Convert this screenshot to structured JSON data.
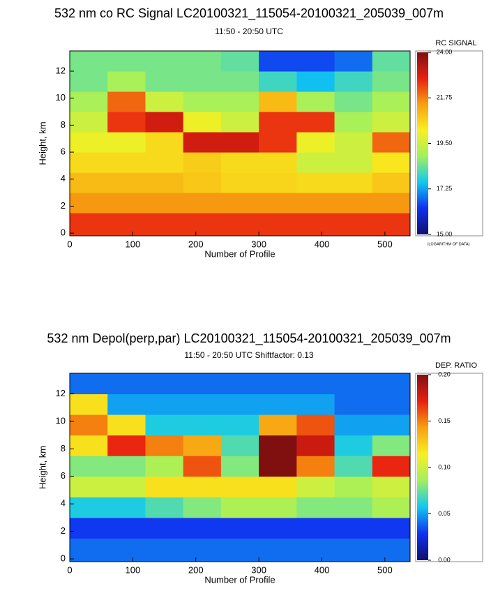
{
  "chart_data": [
    {
      "type": "heatmap",
      "title": "532 nm co RC Signal LC20100321_115054-20100321_205039_007m",
      "subtitle": "11:50 - 20:50 UTC",
      "x_label": "Number of Profile",
      "y_label": "Height, km",
      "xlim": [
        0,
        540
      ],
      "xticks": [
        0,
        100,
        200,
        300,
        400,
        500
      ],
      "ylim": [
        -0.2,
        13.5
      ],
      "yticks": [
        0,
        2,
        4,
        6,
        8,
        10,
        12
      ],
      "x_edges": [
        0,
        60,
        120,
        180,
        240,
        300,
        360,
        420,
        480,
        540
      ],
      "y_edges": [
        -0.2,
        1.5,
        3,
        4.5,
        6,
        7.5,
        9,
        10.5,
        12,
        13.5
      ],
      "z": [
        [
          22.5,
          22.5,
          22.5,
          22.5,
          22.5,
          22.5,
          22.5,
          22.5,
          22.5
        ],
        [
          21.5,
          21.5,
          21.5,
          21.5,
          21.5,
          21.5,
          21.5,
          21.5,
          21.5
        ],
        [
          21,
          21,
          21,
          20.8,
          20.6,
          20.6,
          20.5,
          20.5,
          20.8
        ],
        [
          20.5,
          20.5,
          20.5,
          20.7,
          20.5,
          20.5,
          19.5,
          19.5,
          20.3
        ],
        [
          20,
          20,
          20.5,
          23,
          23,
          22.5,
          20,
          19.5,
          22
        ],
        [
          19.5,
          22.5,
          23,
          20,
          19.5,
          22.5,
          22.5,
          19,
          19.5
        ],
        [
          19,
          22,
          19.5,
          19,
          19,
          21,
          19,
          18.5,
          19
        ],
        [
          18.5,
          19,
          18.5,
          18.5,
          18.5,
          18,
          17.5,
          18,
          18.5
        ],
        [
          18.5,
          18.5,
          18.5,
          18.5,
          18.3,
          16.5,
          16.5,
          16.8,
          18.3
        ]
      ],
      "zlim": [
        15,
        24
      ],
      "zticks": [
        {
          "value": 15,
          "label": "15.00"
        },
        {
          "value": 17.25,
          "label": "17.25"
        },
        {
          "value": 19.5,
          "label": "19.50"
        },
        {
          "value": 21.75,
          "label": "21.75"
        },
        {
          "value": 24,
          "label": "24.00"
        }
      ],
      "colorbar_title": "RC SIGNAL",
      "colorbar_note": "(LOGARITHM OF DATA)",
      "colorscale": [
        "#10106e",
        "#1030f0",
        "#10c8f0",
        "#a0f060",
        "#f8f020",
        "#f8a010",
        "#e82010",
        "#801010"
      ]
    },
    {
      "type": "heatmap",
      "title": "532 nm Depol(perp,par) LC20100321_115054-20100321_205039_007m",
      "subtitle": "11:50 - 20:50 UTC Shiftfactor: 0.13",
      "x_label": "Number of Profile",
      "y_label": "Height, km",
      "xlim": [
        0,
        540
      ],
      "xticks": [
        0,
        100,
        200,
        300,
        400,
        500
      ],
      "ylim": [
        -0.2,
        13.5
      ],
      "yticks": [
        0,
        2,
        4,
        6,
        8,
        10,
        12
      ],
      "x_edges": [
        0,
        60,
        120,
        180,
        240,
        300,
        360,
        420,
        480,
        540
      ],
      "y_edges": [
        -0.2,
        1.5,
        3,
        4.5,
        6,
        7.5,
        9,
        10.5,
        12,
        13.5
      ],
      "z": [
        [
          0.04,
          0.04,
          0.04,
          0.04,
          0.04,
          0.04,
          0.04,
          0.04,
          0.04
        ],
        [
          0.03,
          0.03,
          0.03,
          0.03,
          0.03,
          0.03,
          0.03,
          0.03,
          0.03
        ],
        [
          0.06,
          0.06,
          0.07,
          0.08,
          0.09,
          0.09,
          0.08,
          0.08,
          0.09
        ],
        [
          0.1,
          0.1,
          0.12,
          0.12,
          0.12,
          0.12,
          0.1,
          0.09,
          0.1
        ],
        [
          0.08,
          0.08,
          0.09,
          0.16,
          0.08,
          0.2,
          0.15,
          0.07,
          0.17
        ],
        [
          0.12,
          0.17,
          0.15,
          0.14,
          0.07,
          0.2,
          0.18,
          0.06,
          0.08
        ],
        [
          0.15,
          0.12,
          0.06,
          0.06,
          0.06,
          0.14,
          0.16,
          0.05,
          0.05
        ],
        [
          0.12,
          0.05,
          0.05,
          0.05,
          0.05,
          0.05,
          0.05,
          0.04,
          0.04
        ],
        [
          0.04,
          0.04,
          0.04,
          0.04,
          0.04,
          0.04,
          0.04,
          0.04,
          0.04
        ]
      ],
      "zlim": [
        0,
        0.2
      ],
      "zticks": [
        {
          "value": 0,
          "label": "0.00"
        },
        {
          "value": 0.05,
          "label": "0.05"
        },
        {
          "value": 0.1,
          "label": "0.10"
        },
        {
          "value": 0.15,
          "label": "0.15"
        },
        {
          "value": 0.2,
          "label": "0.20"
        }
      ],
      "colorbar_title": "DEP. RATIO",
      "colorscale": [
        "#10106e",
        "#1030f0",
        "#10c8f0",
        "#a0f060",
        "#f8f020",
        "#f8a010",
        "#e82010",
        "#801010"
      ]
    }
  ]
}
